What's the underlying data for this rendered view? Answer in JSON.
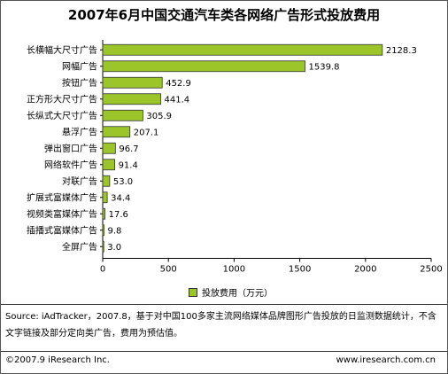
{
  "chart_data": {
    "type": "bar",
    "orientation": "horizontal",
    "title": "2007年6月中国交通汽车类各网络广告形式投放费用",
    "categories": [
      "长横幅大尺寸广告",
      "网幅广告",
      "按钮广告",
      "正方形大尺寸广告",
      "长纵式大尺寸广告",
      "悬浮广告",
      "弹出窗口广告",
      "网络软件广告",
      "对联广告",
      "扩展式富媒体广告",
      "视频类富媒体广告",
      "插播式富媒体广告",
      "全屏广告"
    ],
    "values": [
      2128.3,
      1539.8,
      452.9,
      441.4,
      305.9,
      207.1,
      96.7,
      91.4,
      53.0,
      34.4,
      17.6,
      9.8,
      3.0
    ],
    "value_labels": [
      "2128.3",
      "1539.8",
      "452.9",
      "441.4",
      "305.9",
      "207.1",
      "96.7",
      "91.4",
      "53.0",
      "34.4",
      "17.6",
      "9.8",
      "3.0"
    ],
    "series_name": "投放费用（万元）",
    "xlim": [
      0,
      2500
    ],
    "xticks": [
      "0",
      "500",
      "1000",
      "1500",
      "2000",
      "2500"
    ],
    "grid": false,
    "legend_position": "bottom",
    "bar_color": "#9cc52a"
  },
  "source_text": "Source: iAdTracker，2007.8，基于对中国100多家主流网络媒体品牌图形广告投放的日监测数据统计，不含文字链接及部分定向类广告，费用为预估值。",
  "footer": {
    "copyright": "©2007.9 iResearch Inc.",
    "website": "www.iresearch.com.cn"
  }
}
